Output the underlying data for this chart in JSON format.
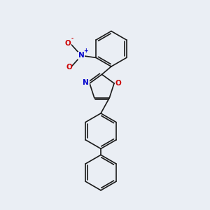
{
  "background_color": "#eaeef4",
  "bond_color": "#1a1a1a",
  "bond_width": 1.2,
  "atom_colors": {
    "N": "#0000cc",
    "O": "#cc0000",
    "C": "#1a1a1a"
  },
  "font_size_atom": 7.5,
  "fig_width": 3.0,
  "fig_height": 3.0,
  "xlim": [
    0,
    10
  ],
  "ylim": [
    0,
    10
  ]
}
